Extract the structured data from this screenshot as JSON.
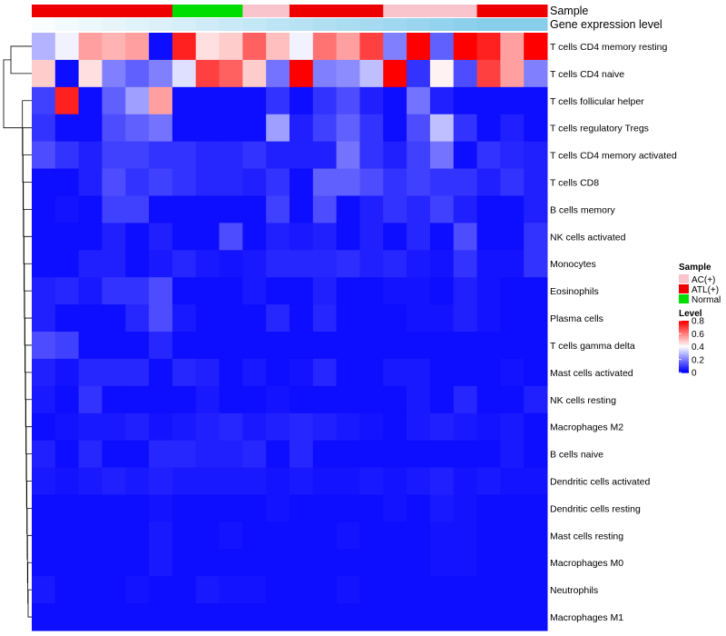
{
  "chart_data": {
    "type": "heatmap",
    "title": "",
    "annotation_tracks": [
      {
        "name": "Sample",
        "values": [
          "ATL(+)",
          "ATL(+)",
          "ATL(+)",
          "ATL(+)",
          "ATL(+)",
          "ATL(+)",
          "Normal",
          "Normal",
          "Normal",
          "AC(+)",
          "AC(+)",
          "ATL(+)",
          "ATL(+)",
          "ATL(+)",
          "ATL(+)",
          "AC(+)",
          "AC(+)",
          "AC(+)",
          "AC(+)",
          "ATL(+)",
          "ATL(+)",
          "ATL(+)"
        ]
      },
      {
        "name": "Gene expression level",
        "values": [
          0.05,
          0.1,
          0.15,
          0.2,
          0.25,
          0.3,
          0.35,
          0.4,
          0.45,
          0.5,
          0.55,
          0.6,
          0.65,
          0.7,
          0.75,
          0.8,
          0.85,
          0.9,
          0.95,
          1.0,
          1.0,
          1.0
        ]
      }
    ],
    "rows": [
      "T cells CD4 memory resting",
      "T cells CD4 naive",
      "T cells follicular helper",
      "T cells regulatory  Tregs",
      "T cells CD4 memory activated",
      "T cells CD8",
      "B cells memory",
      "NK cells activated",
      "Monocytes",
      "Eosinophils",
      "Plasma cells",
      "T cells gamma delta",
      "Mast cells activated",
      "NK cells resting",
      "Macrophages M2",
      "B cells naive",
      "Dendritic cells activated",
      "Dendritic cells resting",
      "Mast cells resting",
      "Macrophages M0",
      "Neutrophils",
      "Macrophages M1"
    ],
    "values": [
      [
        0.28,
        0.38,
        0.55,
        0.52,
        0.55,
        0.02,
        0.75,
        0.45,
        0.48,
        0.65,
        0.5,
        0.38,
        0.62,
        0.55,
        0.7,
        0.2,
        0.8,
        0.15,
        0.8,
        0.75,
        0.55,
        0.8
      ],
      [
        0.48,
        0.02,
        0.45,
        0.2,
        0.15,
        0.2,
        0.35,
        0.7,
        0.65,
        0.48,
        0.18,
        0.8,
        0.2,
        0.22,
        0.3,
        0.8,
        0.08,
        0.42,
        0.12,
        0.7,
        0.55,
        0.2
      ],
      [
        0.1,
        0.75,
        0.02,
        0.15,
        0.25,
        0.55,
        0.02,
        0.02,
        0.02,
        0.02,
        0.08,
        0.02,
        0.08,
        0.12,
        0.05,
        0.02,
        0.18,
        0.05,
        0.02,
        0.02,
        0.02,
        0.02
      ],
      [
        0.08,
        0.02,
        0.02,
        0.12,
        0.15,
        0.18,
        0.02,
        0.02,
        0.02,
        0.02,
        0.25,
        0.05,
        0.1,
        0.15,
        0.08,
        0.02,
        0.12,
        0.3,
        0.08,
        0.02,
        0.05,
        0.02
      ],
      [
        0.12,
        0.08,
        0.05,
        0.1,
        0.1,
        0.08,
        0.08,
        0.06,
        0.06,
        0.08,
        0.05,
        0.05,
        0.05,
        0.18,
        0.08,
        0.05,
        0.1,
        0.18,
        0.02,
        0.08,
        0.06,
        0.05
      ],
      [
        0.02,
        0.02,
        0.05,
        0.12,
        0.08,
        0.1,
        0.08,
        0.06,
        0.06,
        0.05,
        0.08,
        0.02,
        0.15,
        0.15,
        0.12,
        0.08,
        0.1,
        0.08,
        0.08,
        0.05,
        0.08,
        0.05
      ],
      [
        0.02,
        0.03,
        0.02,
        0.1,
        0.1,
        0.02,
        0.02,
        0.02,
        0.02,
        0.02,
        0.1,
        0.02,
        0.12,
        0.02,
        0.05,
        0.08,
        0.06,
        0.1,
        0.05,
        0.02,
        0.02,
        0.05
      ],
      [
        0.02,
        0.02,
        0.02,
        0.05,
        0.02,
        0.05,
        0.02,
        0.02,
        0.12,
        0.02,
        0.05,
        0.04,
        0.05,
        0.02,
        0.05,
        0.02,
        0.06,
        0.02,
        0.12,
        0.02,
        0.02,
        0.08
      ],
      [
        0.02,
        0.02,
        0.05,
        0.05,
        0.02,
        0.04,
        0.06,
        0.04,
        0.03,
        0.04,
        0.06,
        0.06,
        0.06,
        0.07,
        0.05,
        0.06,
        0.04,
        0.03,
        0.08,
        0.03,
        0.03,
        0.08
      ],
      [
        0.05,
        0.06,
        0.04,
        0.08,
        0.08,
        0.12,
        0.02,
        0.02,
        0.02,
        0.04,
        0.02,
        0.02,
        0.05,
        0.02,
        0.02,
        0.03,
        0.03,
        0.02,
        0.05,
        0.03,
        0.02,
        0.02
      ],
      [
        0.05,
        0.02,
        0.02,
        0.02,
        0.06,
        0.12,
        0.04,
        0.02,
        0.02,
        0.02,
        0.06,
        0.02,
        0.06,
        0.02,
        0.02,
        0.02,
        0.03,
        0.03,
        0.05,
        0.03,
        0.02,
        0.02
      ],
      [
        0.12,
        0.1,
        0.02,
        0.02,
        0.02,
        0.06,
        0.02,
        0.02,
        0.02,
        0.02,
        0.02,
        0.02,
        0.02,
        0.02,
        0.02,
        0.02,
        0.02,
        0.02,
        0.02,
        0.02,
        0.02,
        0.02
      ],
      [
        0.05,
        0.03,
        0.06,
        0.06,
        0.06,
        0.02,
        0.06,
        0.05,
        0.02,
        0.04,
        0.02,
        0.03,
        0.06,
        0.02,
        0.02,
        0.04,
        0.04,
        0.02,
        0.02,
        0.02,
        0.03,
        0.02
      ],
      [
        0.04,
        0.02,
        0.08,
        0.02,
        0.02,
        0.02,
        0.02,
        0.04,
        0.02,
        0.02,
        0.03,
        0.02,
        0.02,
        0.02,
        0.02,
        0.02,
        0.04,
        0.02,
        0.06,
        0.02,
        0.02,
        0.05
      ],
      [
        0.02,
        0.03,
        0.04,
        0.04,
        0.05,
        0.03,
        0.04,
        0.05,
        0.06,
        0.04,
        0.05,
        0.06,
        0.05,
        0.04,
        0.03,
        0.02,
        0.04,
        0.05,
        0.04,
        0.03,
        0.04,
        0.02
      ],
      [
        0.05,
        0.02,
        0.06,
        0.02,
        0.02,
        0.06,
        0.06,
        0.05,
        0.05,
        0.06,
        0.02,
        0.06,
        0.02,
        0.02,
        0.02,
        0.02,
        0.02,
        0.02,
        0.02,
        0.02,
        0.04,
        0.02
      ],
      [
        0.04,
        0.03,
        0.04,
        0.05,
        0.04,
        0.05,
        0.04,
        0.04,
        0.04,
        0.04,
        0.03,
        0.04,
        0.03,
        0.03,
        0.04,
        0.03,
        0.04,
        0.05,
        0.03,
        0.04,
        0.03,
        0.03
      ],
      [
        0.02,
        0.02,
        0.02,
        0.02,
        0.02,
        0.03,
        0.02,
        0.02,
        0.02,
        0.02,
        0.03,
        0.02,
        0.02,
        0.02,
        0.02,
        0.03,
        0.02,
        0.04,
        0.03,
        0.02,
        0.02,
        0.02
      ],
      [
        0.02,
        0.02,
        0.02,
        0.02,
        0.02,
        0.04,
        0.02,
        0.02,
        0.03,
        0.02,
        0.02,
        0.02,
        0.02,
        0.03,
        0.02,
        0.02,
        0.02,
        0.03,
        0.03,
        0.02,
        0.02,
        0.02
      ],
      [
        0.02,
        0.02,
        0.02,
        0.02,
        0.02,
        0.04,
        0.02,
        0.02,
        0.02,
        0.02,
        0.02,
        0.02,
        0.02,
        0.02,
        0.02,
        0.02,
        0.02,
        0.03,
        0.03,
        0.02,
        0.02,
        0.02
      ],
      [
        0.04,
        0.02,
        0.02,
        0.02,
        0.03,
        0.02,
        0.02,
        0.04,
        0.03,
        0.03,
        0.02,
        0.02,
        0.02,
        0.03,
        0.02,
        0.02,
        0.02,
        0.02,
        0.02,
        0.02,
        0.02,
        0.02
      ],
      [
        0.02,
        0.02,
        0.02,
        0.02,
        0.02,
        0.02,
        0.02,
        0.02,
        0.02,
        0.02,
        0.02,
        0.02,
        0.02,
        0.02,
        0.02,
        0.02,
        0.02,
        0.02,
        0.02,
        0.02,
        0.02,
        0.02
      ]
    ],
    "legend_sample": {
      "title": "Sample",
      "entries": [
        {
          "label": "AC(+)",
          "color": "#f9c4cc"
        },
        {
          "label": "ATL(+)",
          "color": "#ee0000"
        },
        {
          "label": "Normal",
          "color": "#00dd00"
        }
      ]
    },
    "legend_level": {
      "title": "Level",
      "ticks": [
        0.8,
        0.6,
        0.4,
        0.2,
        0
      ],
      "tick_labels": [
        "0.8",
        "0.6",
        "0.4",
        "0.2",
        "0"
      ],
      "range": [
        0,
        0.8
      ]
    },
    "colors": {
      "low": "#0000ff",
      "mid": "#ffffff",
      "high": "#ff0000",
      "track_low": "#ffffff",
      "track_high": "#87ceeb"
    }
  }
}
